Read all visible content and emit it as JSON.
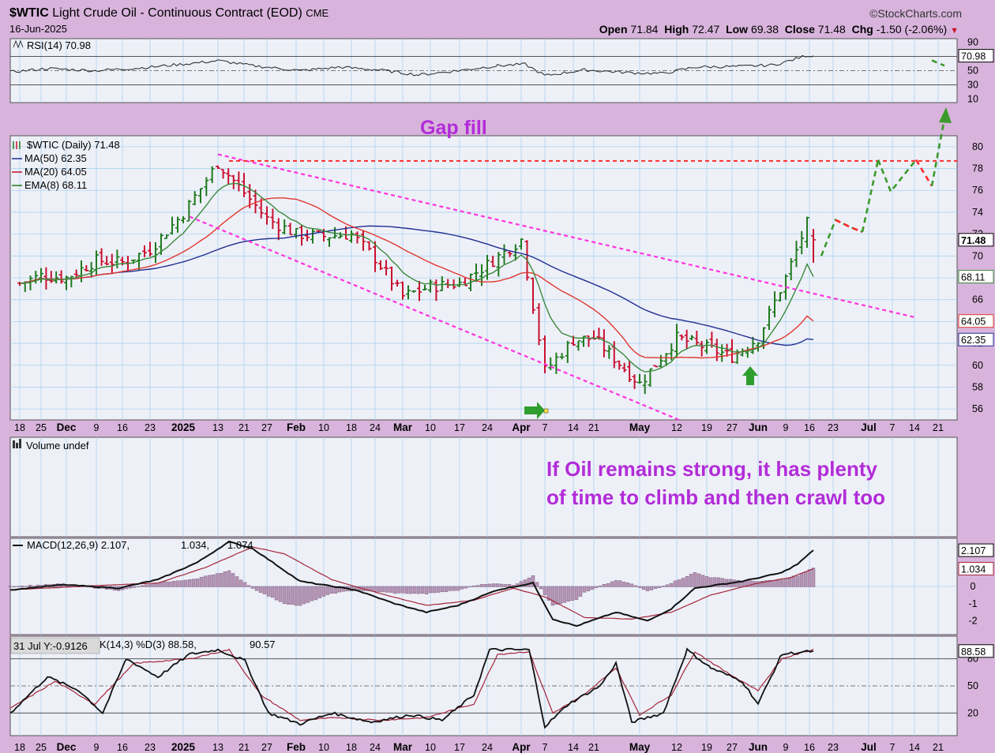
{
  "header": {
    "symbol": "$WTIC",
    "title": "Light Crude Oil - Continuous Contract (EOD)",
    "exchange": "CME",
    "date": "16-Jun-2025",
    "brand": "©StockCharts.com",
    "open_label": "Open",
    "open": "71.84",
    "high_label": "High",
    "high": "72.47",
    "low_label": "Low",
    "low": "69.38",
    "close_label": "Close",
    "close": "71.48",
    "chg_label": "Chg",
    "chg": "-1.50 (-2.06%)"
  },
  "rsi_panel": {
    "label": "RSI(14) 70.98",
    "ticks": [
      "90",
      "70",
      "50",
      "30",
      "10"
    ],
    "value_tag": "70.98"
  },
  "price_panel": {
    "legend": [
      {
        "text": "$WTIC (Daily) 71.48",
        "color": "#1a1a1a"
      },
      {
        "text": "MA(50) 62.35",
        "color": "#1f2f8f"
      },
      {
        "text": "MA(20) 64.05",
        "color": "#c8102e"
      },
      {
        "text": "EMA(8) 68.11",
        "color": "#1f7a1f"
      }
    ],
    "ticks": [
      "80",
      "78",
      "76",
      "74",
      "72",
      "70",
      "68",
      "66",
      "64",
      "62",
      "60",
      "58",
      "56"
    ],
    "tags": [
      {
        "text": "71.48",
        "bold": true
      },
      {
        "text": "68.11",
        "bold": false
      },
      {
        "text": "64.05",
        "bold": false
      },
      {
        "text": "62.35",
        "bold": false
      }
    ]
  },
  "annotations": {
    "gap_fill": "Gap fill",
    "note_line1": "If Oil remains strong, it has plenty",
    "note_line2": "of time to climb and then crawl too"
  },
  "date_axis": [
    {
      "t": "18",
      "b": false
    },
    {
      "t": "25",
      "b": false
    },
    {
      "t": "Dec",
      "b": true
    },
    {
      "t": "9",
      "b": false
    },
    {
      "t": "16",
      "b": false
    },
    {
      "t": "23",
      "b": false
    },
    {
      "t": "2025",
      "b": true
    },
    {
      "t": "13",
      "b": false
    },
    {
      "t": "21",
      "b": false
    },
    {
      "t": "27",
      "b": false
    },
    {
      "t": "Feb",
      "b": true
    },
    {
      "t": "10",
      "b": false
    },
    {
      "t": "18",
      "b": false
    },
    {
      "t": "24",
      "b": false
    },
    {
      "t": "Mar",
      "b": true
    },
    {
      "t": "10",
      "b": false
    },
    {
      "t": "17",
      "b": false
    },
    {
      "t": "24",
      "b": false
    },
    {
      "t": "Apr",
      "b": true
    },
    {
      "t": "7",
      "b": false
    },
    {
      "t": "14",
      "b": false
    },
    {
      "t": "21",
      "b": false
    },
    {
      "t": "May",
      "b": true
    },
    {
      "t": "12",
      "b": false
    },
    {
      "t": "19",
      "b": false
    },
    {
      "t": "27",
      "b": false
    },
    {
      "t": "Jun",
      "b": true
    },
    {
      "t": "9",
      "b": false
    },
    {
      "t": "16",
      "b": false
    },
    {
      "t": "23",
      "b": false
    },
    {
      "t": "Jul",
      "b": true
    },
    {
      "t": "7",
      "b": false
    },
    {
      "t": "14",
      "b": false
    },
    {
      "t": "21",
      "b": false
    }
  ],
  "volume_panel": {
    "label": "Volume undef"
  },
  "macd_panel": {
    "label_main": "MACD(12,26,9) 2.107,",
    "label_signal": "1.034,",
    "label_hist": "1.074",
    "ticks": [
      "2",
      "1",
      "0",
      "-1",
      "-2"
    ],
    "tags": [
      "2.107",
      "1.034"
    ]
  },
  "stoch_panel": {
    "tooltip": "31 Jul Y:-0.9126",
    "label": "K(14,3) %D(3) 88.58,",
    "label_d": "90.57",
    "ticks": [
      "80",
      "50",
      "20"
    ],
    "tag": "88.58"
  },
  "colors": {
    "panel_bg": "#eef0f8",
    "frame_bg": "#d8b4dc",
    "grid": "#a9d4ee",
    "bull": "#1f7a1f",
    "bear": "#c8102e",
    "ma50": "#1f2f8f",
    "ma20": "#e0392e",
    "ema8": "#3a8a3a",
    "trend": "#ff33dd",
    "gapline": "#ff2a2a",
    "annotation": "#b22cd8",
    "projection_up": "#3a9a2a",
    "projection_down": "#ff2a2a"
  },
  "chart_data": {
    "type": "candlestick",
    "title": "$WTIC Light Crude Oil - Continuous Contract (EOD)",
    "ylim": [
      55,
      81
    ],
    "ohlc_last": {
      "open": 71.84,
      "high": 72.47,
      "low": 69.38,
      "close": 71.48
    },
    "close_series": [
      {
        "date": "2024-11-18",
        "close": 67.5
      },
      {
        "date": "2024-11-25",
        "close": 68.2
      },
      {
        "date": "2024-12-02",
        "close": 68.0
      },
      {
        "date": "2024-12-09",
        "close": 69.6
      },
      {
        "date": "2024-12-16",
        "close": 69.4
      },
      {
        "date": "2024-12-23",
        "close": 70.6
      },
      {
        "date": "2025-01-02",
        "close": 73.9
      },
      {
        "date": "2025-01-13",
        "close": 78.5
      },
      {
        "date": "2025-01-21",
        "close": 75.8
      },
      {
        "date": "2025-01-27",
        "close": 73.4
      },
      {
        "date": "2025-02-03",
        "close": 72.0
      },
      {
        "date": "2025-02-10",
        "close": 71.8
      },
      {
        "date": "2025-02-18",
        "close": 72.0
      },
      {
        "date": "2025-02-24",
        "close": 69.8
      },
      {
        "date": "2025-03-03",
        "close": 66.3
      },
      {
        "date": "2025-03-10",
        "close": 67.2
      },
      {
        "date": "2025-03-17",
        "close": 67.5
      },
      {
        "date": "2025-03-24",
        "close": 69.2
      },
      {
        "date": "2025-04-01",
        "close": 71.5
      },
      {
        "date": "2025-04-07",
        "close": 59.5
      },
      {
        "date": "2025-04-14",
        "close": 62.3
      },
      {
        "date": "2025-04-21",
        "close": 62.5
      },
      {
        "date": "2025-05-01",
        "close": 58.3
      },
      {
        "date": "2025-05-12",
        "close": 62.5
      },
      {
        "date": "2025-05-19",
        "close": 61.6
      },
      {
        "date": "2025-05-27",
        "close": 60.8
      },
      {
        "date": "2025-06-02",
        "close": 62.5
      },
      {
        "date": "2025-06-09",
        "close": 68.0
      },
      {
        "date": "2025-06-13",
        "close": 72.98
      },
      {
        "date": "2025-06-16",
        "close": 71.48
      }
    ],
    "indicators": {
      "MA50": 62.35,
      "MA20": 64.05,
      "EMA8": 68.11,
      "RSI14": 70.98,
      "MACD": 2.107,
      "MACD_signal": 1.034,
      "MACD_hist": 1.074,
      "StochK": 88.58,
      "StochD": 90.57
    },
    "gap_fill_level": 78.7
  }
}
